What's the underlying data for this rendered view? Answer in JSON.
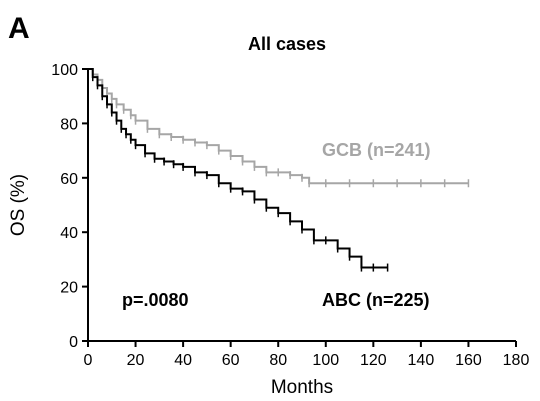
{
  "chart_data": {
    "type": "line",
    "panel_label": "A",
    "title": "All cases",
    "xlabel": "Months",
    "ylabel": "OS (%)",
    "xlim": [
      0,
      180
    ],
    "ylim": [
      0,
      100
    ],
    "xticks": [
      0,
      20,
      40,
      60,
      80,
      100,
      120,
      140,
      160,
      180
    ],
    "yticks": [
      0,
      20,
      40,
      60,
      80,
      100
    ],
    "grid": false,
    "annotations": {
      "pvalue": "p=.0080"
    },
    "colors": {
      "gcb": "#a6a6a6",
      "abc": "#000000",
      "axis": "#000000"
    },
    "series": [
      {
        "name": "GCB (n=241)",
        "x": [
          0,
          2,
          4,
          6,
          8,
          10,
          12,
          15,
          18,
          20,
          25,
          30,
          35,
          40,
          45,
          50,
          55,
          60,
          65,
          70,
          75,
          80,
          85,
          90,
          93,
          100,
          110,
          120,
          130,
          140,
          150,
          160
        ],
        "values": [
          100,
          98,
          96,
          93,
          91,
          89,
          87,
          85,
          83,
          81,
          78,
          76,
          75,
          74,
          73,
          72,
          70,
          68,
          66,
          64,
          62,
          62,
          61,
          60,
          58,
          58,
          58,
          58,
          58,
          58,
          58,
          58
        ]
      },
      {
        "name": "ABC (n=225)",
        "x": [
          0,
          2,
          4,
          6,
          8,
          10,
          12,
          14,
          16,
          18,
          20,
          24,
          28,
          32,
          36,
          40,
          45,
          50,
          55,
          60,
          65,
          70,
          75,
          80,
          85,
          90,
          95,
          100,
          105,
          110,
          115,
          120,
          126
        ],
        "values": [
          100,
          97,
          94,
          90,
          87,
          84,
          81,
          78,
          76,
          74,
          72,
          69,
          67,
          66,
          65,
          64,
          62,
          61,
          58,
          56,
          55,
          52,
          49,
          47,
          44,
          41,
          37,
          37,
          34,
          31,
          27,
          27,
          27
        ]
      }
    ]
  }
}
